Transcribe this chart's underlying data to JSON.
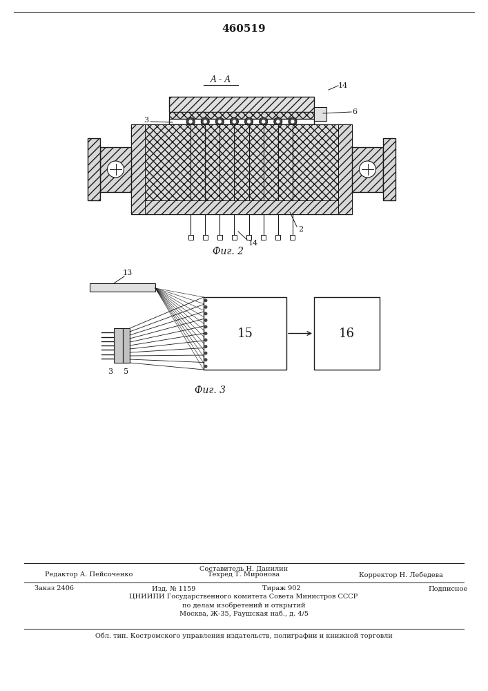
{
  "title": "460519",
  "fig2_label": "Фиг. 2",
  "fig3_label": "Фиг. 3",
  "footer_line1": "Составитель Н. Данилин",
  "footer_line2_left": "Редактор А. Пейсоченко",
  "footer_line2_mid": "Техред Т. Миронова",
  "footer_line2_right": "Корректор Н. Лебедева",
  "footer_line3_left": "Заказ 2406",
  "footer_line3_mid1": "Изд. № 1159",
  "footer_line3_mid2": "Тираж 902",
  "footer_line3_right": "Подписное",
  "footer_line4": "ЦНИИПИ Государственного комитета Совета Министров СССР",
  "footer_line5": "по делам изобретений и открытий",
  "footer_line6": "Москва, Ж-35, Раушская наб., д. 4/5",
  "footer_last": "Обл. тип. Костромского управления издательств, полиграфии и книжной торговли",
  "bg_color": "#ffffff",
  "line_color": "#1a1a1a",
  "label_14a": "14",
  "label_14b": "14",
  "label_6": "6",
  "label_3": "3",
  "label_2": "2",
  "label_A": "A - A",
  "label_13": "13",
  "label_3b": "3",
  "label_5": "5",
  "label_15": "15",
  "label_16": "16"
}
